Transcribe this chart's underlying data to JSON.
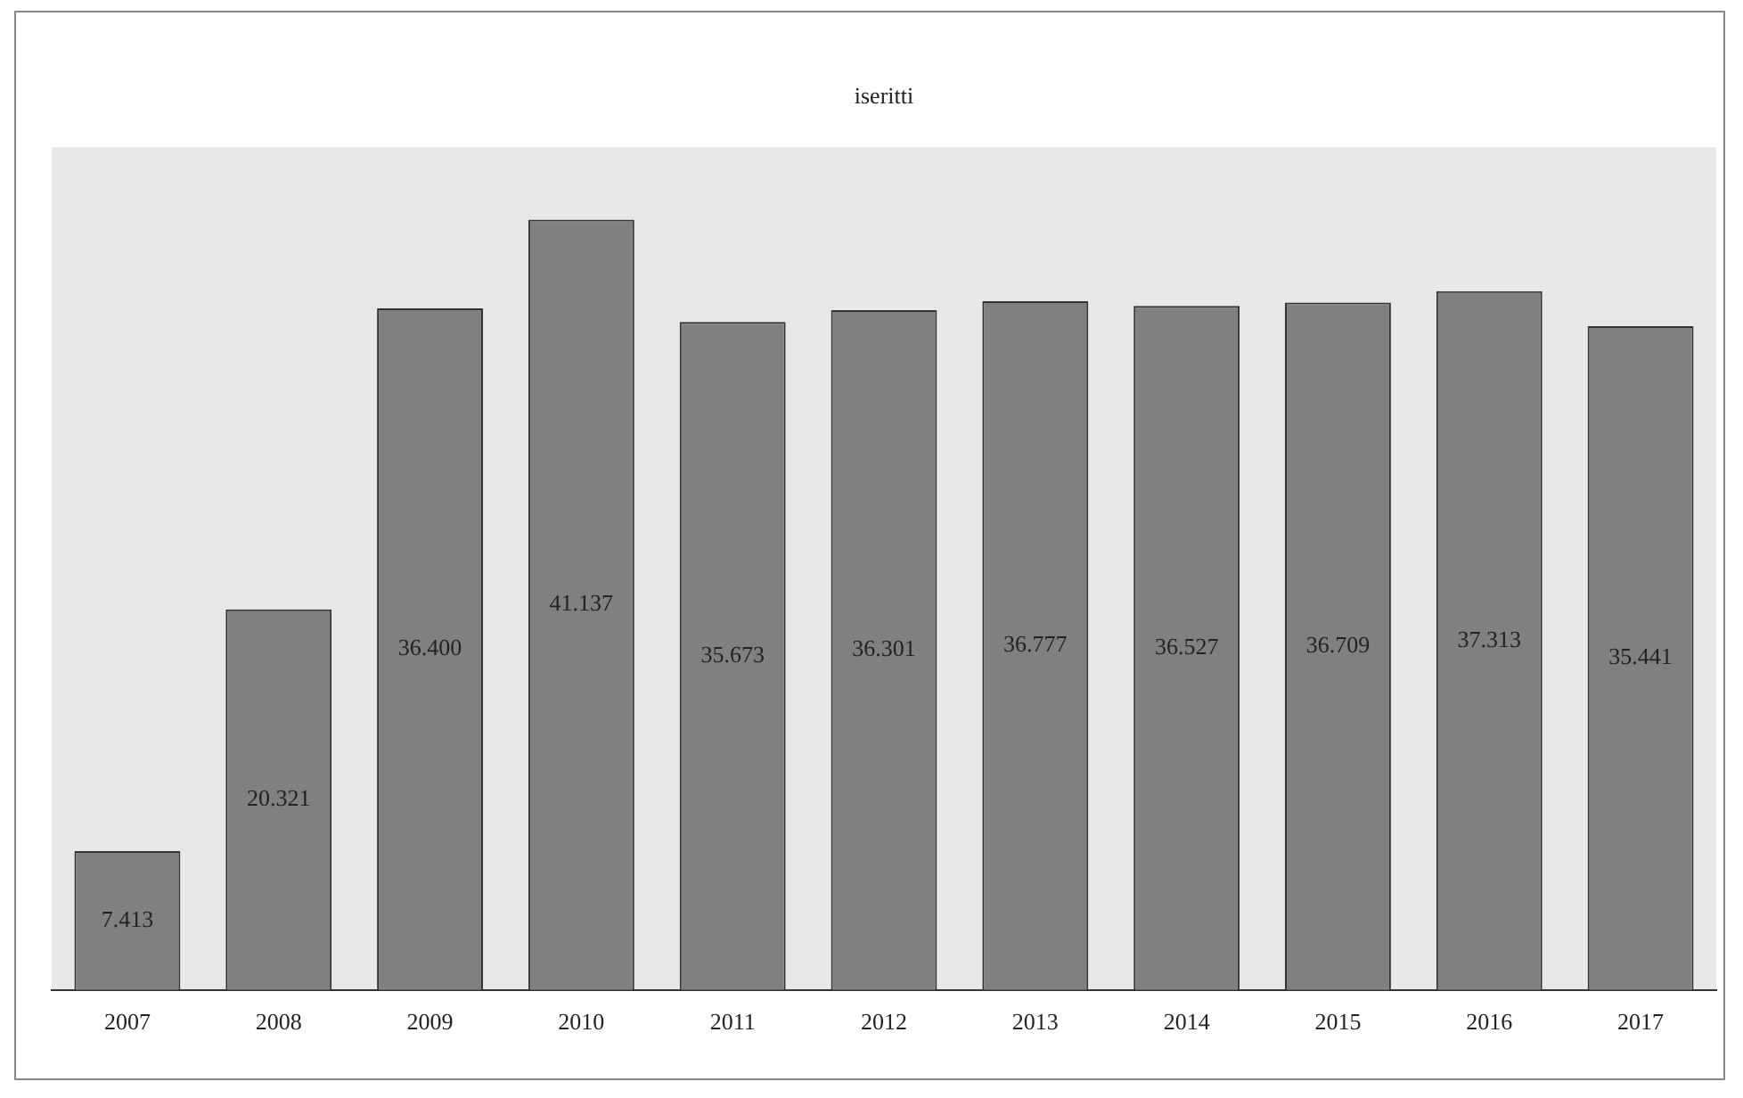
{
  "chart_data": {
    "type": "bar",
    "title": "iseritti",
    "categories": [
      "2007",
      "2008",
      "2009",
      "2010",
      "2011",
      "2012",
      "2013",
      "2014",
      "2015",
      "2016",
      "2017"
    ],
    "values": [
      7413,
      20321,
      36400,
      41137,
      35673,
      36301,
      36777,
      36527,
      36709,
      37313,
      35441
    ],
    "value_labels": [
      "7.413",
      "20.321",
      "36.400",
      "41.137",
      "35.673",
      "36.301",
      "36.777",
      "36.527",
      "36.709",
      "37.313",
      "35.441"
    ],
    "color": "#808080",
    "grid": false,
    "legend": false,
    "tick_labels": "x"
  }
}
